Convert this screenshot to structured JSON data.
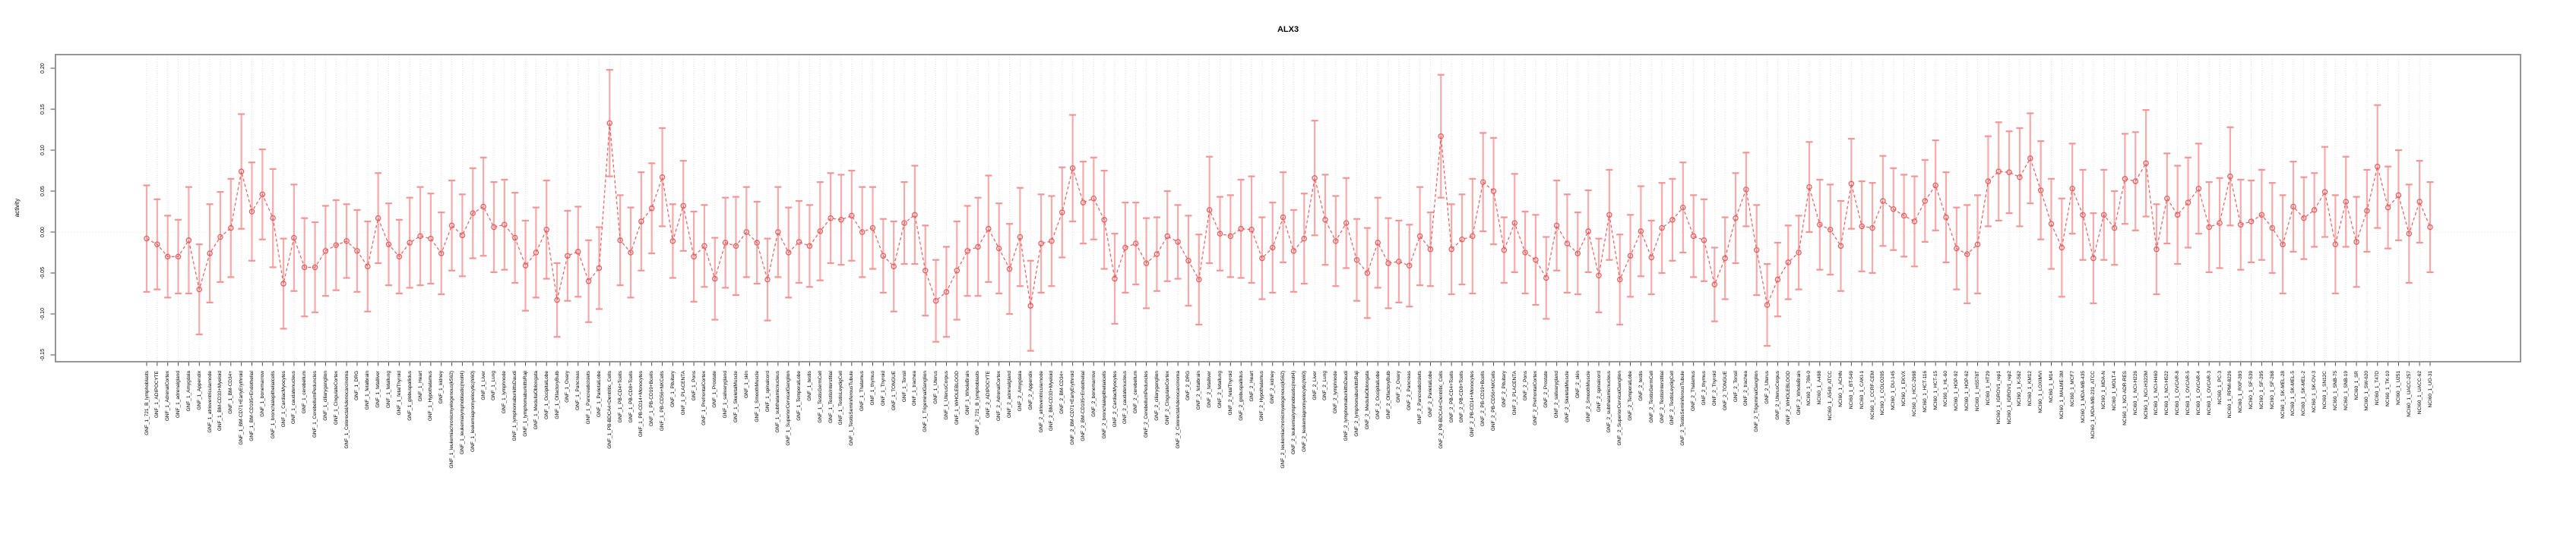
{
  "title": "ALX3",
  "y_axis": {
    "label": "activity",
    "ticks": [
      "-0.15",
      "-0.10",
      "-0.05",
      "0.00",
      "0.05",
      "0.10",
      "0.15",
      "0.20"
    ]
  },
  "colors": {
    "series_red": "#e85c5c",
    "errorbar_pink": "#f6abab",
    "errorbar_cap_pink": "#f19595",
    "gridline_gray": "#dcdcdc",
    "zero_line_gray": "#e3e3e3",
    "box_border_gray": "#8a8a8a",
    "tick_gray": "#4d4d4d",
    "background": "#ffffff"
  },
  "chart_data": {
    "type": "line",
    "subtype": "points-with-error-bars",
    "title": "ALX3",
    "xlabel": "",
    "ylabel": "activity",
    "ylim": [
      -0.158,
      0.217
    ],
    "y_tick_values": [
      -0.15,
      -0.1,
      -0.05,
      0.0,
      0.05,
      0.1,
      0.15,
      0.2
    ],
    "grid": "vertical dotted gridline at every category; dotted horizontal line at y=0",
    "legend_position": "none",
    "marker": "open-circle",
    "line_style": "dashed",
    "categories": [
      "GNF_1_721_B_lymphoblasts",
      "GNF_1_ADIPOCYTE",
      "GNF_1_AdrenalCortex",
      "GNF_1_adrenalgland",
      "GNF_1_Amygdala",
      "GNF_1_Appendix",
      "GNF_1_atrioventricularnode",
      "GNF_1_BM-CD33+Myeloid",
      "GNF_1_BM-CD34+",
      "GNF_1_BM-CD71+EarlyErythroid",
      "GNF_1_BM-CD105+Endothelial",
      "GNF_1_bonemarrow",
      "GNF_1_bronchialepithelialcells",
      "GNF_1_CardiacMyocytes",
      "GNF_1_caudatenucleus",
      "GNF_1_cerebellum",
      "GNF_1_CerebellumPeduncles",
      "GNF_1_ciliaryganglion",
      "GNF_1_CingulateCortex",
      "GNF_1_ColorectalAdenocarcinoma",
      "GNF_1_DRG",
      "GNF_1_fetalbrain",
      "GNF_1_fetalliver",
      "GNF_1_fetallung",
      "GNF_1_fetalThyroid",
      "GNF_1_globuspallidus",
      "GNF_1_Heart",
      "GNF_1_Hypothalamus",
      "GNF_1_kidney",
      "GNF_1_leukemiachronicmyelogenous(k562)",
      "GNF_1_leukemialymphoblastic(molt4)",
      "GNF_1_leukemiapromyelocytic(hl60)",
      "GNF_1_Liver",
      "GNF_1_Lung",
      "GNF_1_lymphnode",
      "GNF_1_lymphomaburkittsDaudi",
      "GNF_1_lymphomaburkittsRaji",
      "GNF_1_MedullaOblongata",
      "GNF_1_OccipitalLobe",
      "GNF_1_OlfactoryBulb",
      "GNF_1_Ovary",
      "GNF_1_Pancreas",
      "GNF_1_PancreaticIslets",
      "GNF_1_ParietalLobe",
      "GNF_1_PB-BDCA4+Dentritic_Cells",
      "GNF_1_PB-CD4+Tcells",
      "GNF_1_PB-CD8+Tcells",
      "GNF_1_PB-CD14+Monocytes",
      "GNF_1_PB-CD19+Bcells",
      "GNF_1_PB-CD56+NKCells",
      "GNF_1_Pituitary",
      "GNF_1_PLACENTA",
      "GNF_1_Pons",
      "GNF_1_PrefrontalCortex",
      "GNF_1_Prostate",
      "GNF_1_salivarygland",
      "GNF_1_SkeletalMuscle",
      "GNF_1_skin",
      "GNF_1_SmoothMuscle",
      "GNF_1_spinalcord",
      "GNF_1_subthalamicnucleus",
      "GNF_1_SuperiorCervicalGanglion",
      "GNF_1_TemporalLobe",
      "GNF_1_testis",
      "GNF_1_TestisGermCell",
      "GNF_1_TestisInterstitial",
      "GNF_1_TestisLeydigCell",
      "GNF_1_TestisSeminiferousTubule",
      "GNF_1_Thalamus",
      "GNF_1_thymus",
      "GNF_1_Thyroid",
      "GNF_1_TONGUE",
      "GNF_1_Tonsil",
      "GNF_1_trachea",
      "GNF_1_TrigeminalGanglion",
      "GNF_1_Uterus",
      "GNF_1_UterusCorpus",
      "GNF_1_WHOLEBLOOD",
      "GNF_1_WholeBrain",
      "GNF_2_721_B_lymphoblasts",
      "GNF_2_ADIPOCYTE",
      "GNF_2_AdrenalCortex",
      "GNF_2_adrenalgland",
      "GNF_2_Amygdala",
      "GNF_2_Appendix",
      "GNF_2_atrioventricularnode",
      "GNF_2_BM-CD33+Myeloid",
      "GNF_2_BM-CD34+",
      "GNF_2_BM-CD71+EarlyErythroid",
      "GNF_2_BM-CD105+Endothelial",
      "GNF_2_bonemarrow",
      "GNF_2_bronchialepithelialcells",
      "GNF_2_CardiacMyocytes",
      "GNF_2_caudatenucleus",
      "GNF_2_cerebellum",
      "GNF_2_CerebellumPeduncles",
      "GNF_2_ciliaryganglion",
      "GNF_2_CingulateCortex",
      "GNF_2_ColorectalAdenocarcinoma",
      "GNF_2_DRG",
      "GNF_2_fetalbrain",
      "GNF_2_fetalliver",
      "GNF_2_fetallung",
      "GNF_2_fetalThyroid",
      "GNF_2_globuspallidus",
      "GNF_2_Heart",
      "GNF_2_Hypothalamus",
      "GNF_2_kidney",
      "GNF_2_leukemiachronicmyelogenous(k562)",
      "GNF_2_leukemialymphoblastic(molt4)",
      "GNF_2_leukemiapromyelocytic(hl60)",
      "GNF_2_Liver",
      "GNF_2_Lung",
      "GNF_2_lymphnode",
      "GNF_2_lymphomaburkittsDaudi",
      "GNF_2_lymphomaburkittsRaji",
      "GNF_2_MedullaOblongata",
      "GNF_2_OccipitalLobe",
      "GNF_2_OlfactoryBulb",
      "GNF_2_Ovary",
      "GNF_2_Pancreas",
      "GNF_2_PancreaticIslets",
      "GNF_2_ParietalLobe",
      "GNF_2_PB-BDCA4+Dentritic_Cells",
      "GNF_2_PB-CD4+Tcells",
      "GNF_2_PB-CD8+Tcells",
      "GNF_2_PB-CD14+Monocytes",
      "GNF_2_PB-CD19+Bcells",
      "GNF_2_PB-CD56+NKCells",
      "GNF_2_Pituitary",
      "GNF_2_PLACENTA",
      "GNF_2_Pons",
      "GNF_2_PrefrontalCortex",
      "GNF_2_Prostate",
      "GNF_2_salivarygland",
      "GNF_2_SkeletalMuscle",
      "GNF_2_skin",
      "GNF_2_SmoothMuscle",
      "GNF_2_spinalcord",
      "GNF_2_subthalamicnucleus",
      "GNF_2_SuperiorCervicalGanglion",
      "GNF_2_TemporalLobe",
      "GNF_2_testis",
      "GNF_2_TestisGermCell",
      "GNF_2_TestisInterstitial",
      "GNF_2_TestisLeydigCell",
      "GNF_2_TestisSeminiferousTubule",
      "GNF_2_Thalamus",
      "GNF_2_thymus",
      "GNF_2_Thyroid",
      "GNF_2_TONGUE",
      "GNF_2_Tonsil",
      "GNF_2_trachea",
      "GNF_2_TrigeminalGanglion",
      "GNF_2_Uterus",
      "GNF_2_UterusCorpus",
      "GNF_2_WHOLEBLOOD",
      "GNF_2_WholeBrain",
      "NCI60_1_786-0",
      "NCI60_1_A498",
      "NCI60_1_A549_ATCC",
      "NCI60_1_ACHN",
      "NCI60_1_BT-549",
      "NCI60_1_CAKI-1",
      "NCI60_1_CCRF-CEM",
      "NCI60_1_COLO205",
      "NCI60_1_DU-145",
      "NCI60_1_EKVX",
      "NCI60_1_HCC-2998",
      "NCI60_1_HCT-116",
      "NCI60_1_HCT-15",
      "NCI60_1_HL-60",
      "NCI60_1_HOP-92",
      "NCI60_1_HOP-62",
      "NCI60_1_HS578T",
      "NCI60_1_HT29",
      "NCI60_1_IGROV1_rep1",
      "NCI60_1_IGROV1_rep2",
      "NCI60_1_K-562",
      "NCI60_1_KM12",
      "NCI60_1_LOXIMVI",
      "NCI60_1_M14",
      "NCI60_1_MALME-3M",
      "NCI60_1_MCF7",
      "NCI60_1_MDA-MB-435",
      "NCI60_1_MDA-MB-231_ATCC",
      "NCI60_1_MDA-N",
      "NCI60_1_MOLT-4",
      "NCI60_1_NCI-ADR-RES",
      "NCI60_1_NCI-H226",
      "NCI60_1_NCI-H322M",
      "NCI60_1_NCI-H460",
      "NCI60_1_NCI-H522",
      "NCI60_1_OVCAR-8",
      "NCI60_1_OVCAR-5",
      "NCI60_1_OVCAR-4",
      "NCI60_1_OVCAR-3",
      "NCI60_1_PC-3",
      "NCI60_1_RPMI-8226",
      "NCI60_1_RXF-393",
      "NCI60_1_SF-539",
      "NCI60_1_SF-295",
      "NCI60_1_SF-268",
      "NCI60_1_SK-MEL-28",
      "NCI60_1_SK-MEL-5",
      "NCI60_1_SK-MEL-2",
      "NCI60_1_SK-OV-3",
      "NCI60_1_SN12C",
      "NCI60_1_SNB-75",
      "NCI60_1_SNB-19",
      "NCI60_1_SR",
      "NCI60_1_SW-620",
      "NCI60_1_T47D",
      "NCI60_1_TK-10",
      "NCI60_1_U251",
      "NCI60_1_UACC-257",
      "NCI60_1_UACC-62",
      "NCI60_1_UO-31"
    ],
    "values": [
      -0.008,
      -0.015,
      -0.03,
      -0.03,
      -0.01,
      -0.07,
      -0.026,
      -0.006,
      0.005,
      0.074,
      0.025,
      0.046,
      0.017,
      -0.063,
      -0.007,
      -0.043,
      -0.043,
      -0.023,
      -0.016,
      -0.011,
      -0.023,
      -0.042,
      0.017,
      -0.015,
      -0.03,
      -0.013,
      -0.005,
      -0.008,
      -0.026,
      0.008,
      -0.004,
      0.023,
      0.031,
      0.006,
      0.009,
      -0.007,
      -0.041,
      -0.025,
      0.003,
      -0.083,
      -0.029,
      -0.024,
      -0.06,
      -0.044,
      0.133,
      -0.01,
      -0.025,
      0.013,
      0.029,
      0.067,
      -0.011,
      0.032,
      -0.03,
      -0.017,
      -0.057,
      -0.013,
      -0.017,
      0.0,
      -0.013,
      -0.058,
      0.0,
      -0.025,
      -0.012,
      -0.017,
      0.001,
      0.017,
      0.015,
      0.02,
      0.0,
      0.005,
      -0.029,
      -0.042,
      0.011,
      0.021,
      -0.047,
      -0.084,
      -0.073,
      -0.047,
      -0.023,
      -0.018,
      0.004,
      -0.02,
      -0.045,
      -0.006,
      -0.09,
      -0.014,
      -0.011,
      0.024,
      0.078,
      0.036,
      0.041,
      0.015,
      -0.057,
      -0.019,
      -0.014,
      -0.038,
      -0.027,
      -0.005,
      -0.012,
      -0.035,
      -0.058,
      0.027,
      -0.002,
      -0.005,
      0.004,
      0.003,
      -0.032,
      -0.019,
      0.018,
      -0.023,
      -0.008,
      0.066,
      0.015,
      -0.011,
      0.011,
      -0.034,
      -0.05,
      -0.013,
      -0.038,
      -0.036,
      -0.041,
      -0.005,
      -0.021,
      0.117,
      -0.021,
      -0.009,
      -0.005,
      0.061,
      0.05,
      -0.022,
      0.011,
      -0.025,
      -0.034,
      -0.056,
      0.008,
      -0.014,
      -0.026,
      0.001,
      -0.053,
      0.021,
      -0.058,
      -0.029,
      0.001,
      -0.031,
      0.005,
      0.015,
      0.03,
      -0.005,
      -0.01,
      -0.064,
      -0.032,
      0.017,
      0.052,
      -0.022,
      -0.089,
      -0.058,
      -0.037,
      -0.025,
      0.055,
      0.009,
      0.003,
      -0.017,
      0.059,
      0.007,
      0.005,
      0.038,
      0.028,
      0.02,
      0.013,
      0.038,
      0.057,
      0.018,
      -0.02,
      -0.027,
      -0.015,
      0.062,
      0.074,
      0.073,
      0.067,
      0.09,
      0.051,
      0.01,
      -0.019,
      0.053,
      0.021,
      -0.032,
      0.021,
      0.005,
      0.065,
      0.062,
      0.084,
      -0.021,
      0.041,
      0.021,
      0.036,
      0.053,
      0.006,
      0.011,
      0.068,
      0.009,
      0.013,
      0.021,
      0.005,
      -0.015,
      0.031,
      0.017,
      0.027,
      0.049,
      -0.015,
      0.037,
      -0.012,
      0.026,
      0.08,
      0.03,
      0.045,
      -0.002,
      0.037,
      0.006
    ],
    "errors": [
      0.065,
      0.055,
      0.05,
      0.045,
      0.065,
      0.055,
      0.06,
      0.055,
      0.06,
      0.07,
      0.06,
      0.055,
      0.06,
      0.055,
      0.065,
      0.06,
      0.055,
      0.055,
      0.055,
      0.045,
      0.05,
      0.055,
      0.055,
      0.05,
      0.045,
      0.055,
      0.06,
      0.055,
      0.05,
      0.055,
      0.05,
      0.055,
      0.06,
      0.055,
      0.055,
      0.055,
      0.055,
      0.055,
      0.06,
      0.045,
      0.055,
      0.055,
      0.05,
      0.05,
      0.065,
      0.055,
      0.055,
      0.06,
      0.055,
      0.06,
      0.045,
      0.055,
      0.055,
      0.05,
      0.05,
      0.055,
      0.06,
      0.055,
      0.05,
      0.05,
      0.055,
      0.055,
      0.05,
      0.05,
      0.06,
      0.055,
      0.055,
      0.055,
      0.055,
      0.05,
      0.045,
      0.055,
      0.05,
      0.06,
      0.055,
      0.05,
      0.055,
      0.06,
      0.055,
      0.06,
      0.065,
      0.055,
      0.055,
      0.06,
      0.055,
      0.06,
      0.055,
      0.055,
      0.065,
      0.05,
      0.05,
      0.06,
      0.055,
      0.055,
      0.05,
      0.055,
      0.045,
      0.055,
      0.045,
      0.055,
      0.055,
      0.065,
      0.045,
      0.05,
      0.06,
      0.065,
      0.05,
      0.055,
      0.055,
      0.05,
      0.055,
      0.07,
      0.055,
      0.055,
      0.055,
      0.05,
      0.055,
      0.055,
      0.055,
      0.05,
      0.05,
      0.06,
      0.045,
      0.075,
      0.055,
      0.055,
      0.07,
      0.06,
      0.065,
      0.04,
      0.06,
      0.05,
      0.055,
      0.05,
      0.055,
      0.06,
      0.05,
      0.05,
      0.045,
      0.055,
      0.055,
      0.05,
      0.055,
      0.045,
      0.055,
      0.05,
      0.055,
      0.05,
      0.05,
      0.045,
      0.05,
      0.055,
      0.045,
      0.055,
      0.05,
      0.045,
      0.045,
      0.045,
      0.055,
      0.055,
      0.055,
      0.055,
      0.055,
      0.055,
      0.055,
      0.055,
      0.05,
      0.05,
      0.055,
      0.05,
      0.055,
      0.055,
      0.05,
      0.06,
      0.06,
      0.055,
      0.06,
      0.05,
      0.06,
      0.055,
      0.06,
      0.055,
      0.06,
      0.055,
      0.055,
      0.055,
      0.055,
      0.045,
      0.055,
      0.06,
      0.065,
      0.055,
      0.055,
      0.06,
      0.055,
      0.055,
      0.055,
      0.055,
      0.06,
      0.055,
      0.05,
      0.055,
      0.055,
      0.06,
      0.055,
      0.05,
      0.045,
      0.055,
      0.06,
      0.055,
      0.055,
      0.05,
      0.075,
      0.05,
      0.055,
      0.06,
      0.05,
      0.055
    ]
  }
}
